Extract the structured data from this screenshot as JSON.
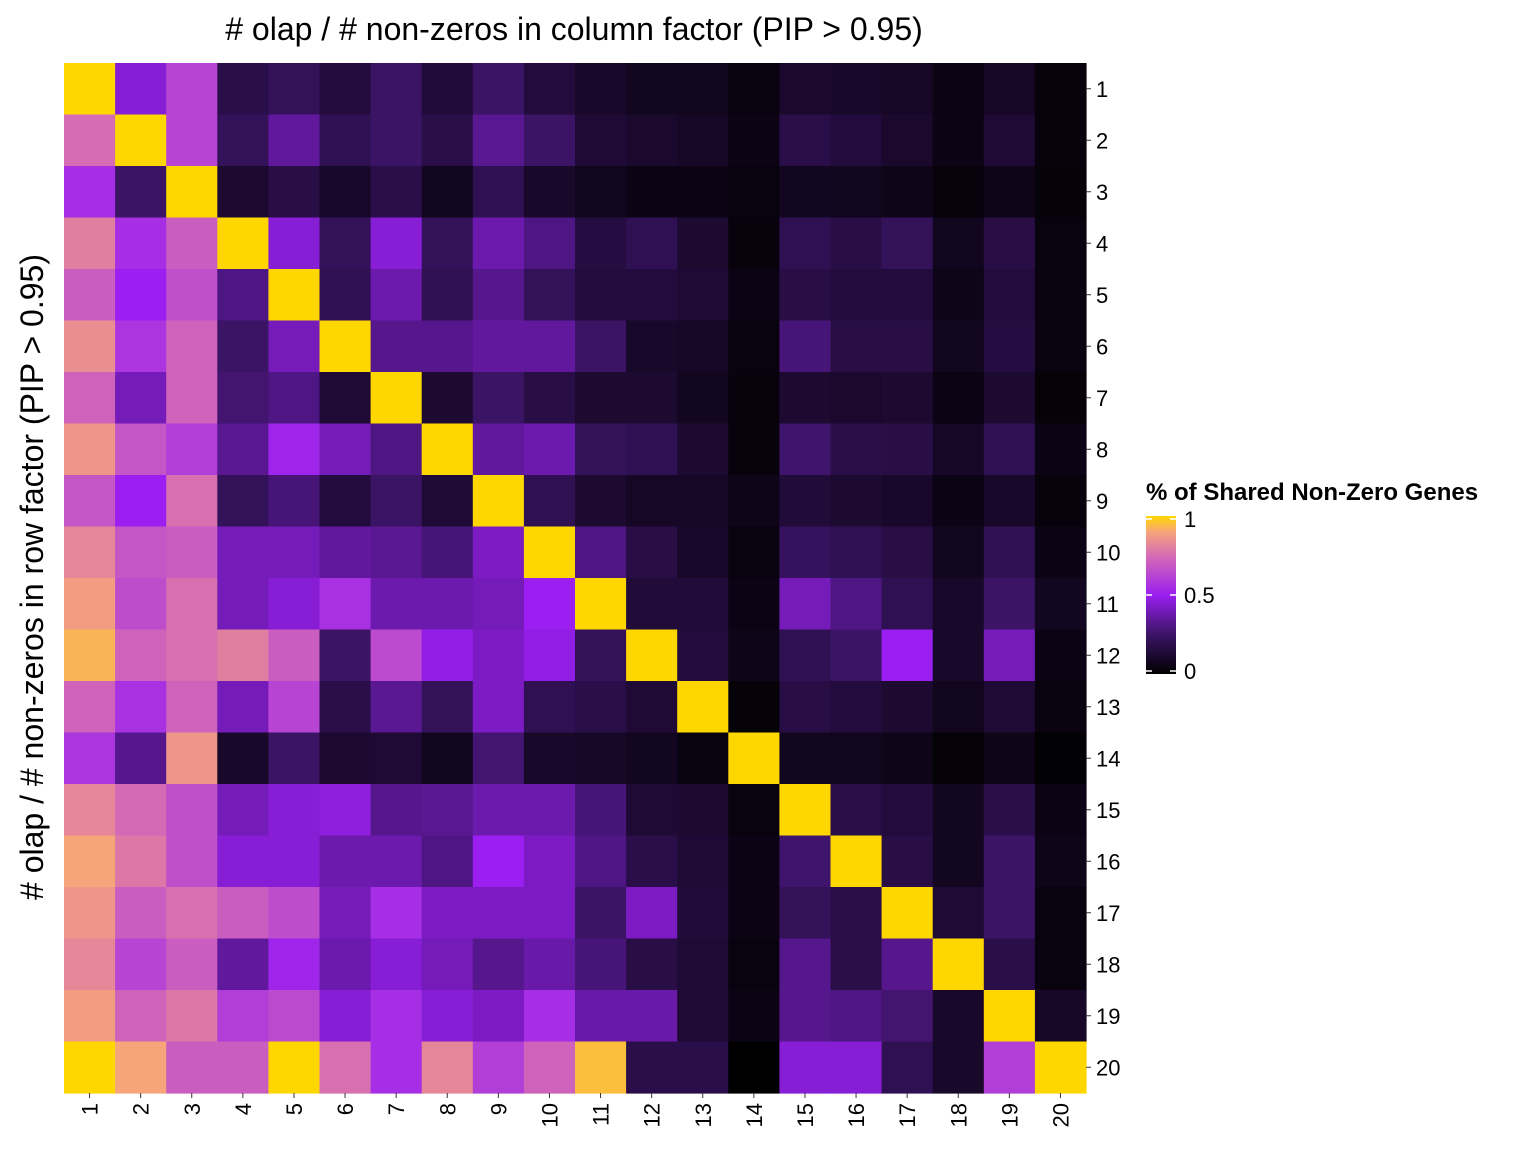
{
  "chart_data": {
    "type": "heatmap",
    "title": "# olap / # non-zeros in column factor (PIP > 0.95)",
    "ylabel": "# olap / # non-zeros in row factor (PIP > 0.95)",
    "xlabel": "",
    "x_categories": [
      "1",
      "2",
      "3",
      "4",
      "5",
      "6",
      "7",
      "8",
      "9",
      "10",
      "11",
      "12",
      "13",
      "14",
      "15",
      "16",
      "17",
      "18",
      "19",
      "20"
    ],
    "y_categories": [
      "1",
      "2",
      "3",
      "4",
      "5",
      "6",
      "7",
      "8",
      "9",
      "10",
      "11",
      "12",
      "13",
      "14",
      "15",
      "16",
      "17",
      "18",
      "19",
      "20"
    ],
    "x_axis_position": "bottom",
    "y_axis_position": "right",
    "legend": {
      "title": "% of Shared Non-Zero Genes",
      "position": "right",
      "ticks": [
        0,
        0.5,
        1
      ],
      "tick_labels": [
        "0",
        "0.5",
        "1"
      ],
      "range": [
        0,
        1
      ]
    },
    "colorscale": [
      {
        "value": 0.0,
        "color": "#000000"
      },
      {
        "value": 0.25,
        "color": "#3b1466"
      },
      {
        "value": 0.5,
        "color": "#9a1ff0"
      },
      {
        "value": 0.75,
        "color": "#d66cb4"
      },
      {
        "value": 0.9,
        "color": "#f6a57a"
      },
      {
        "value": 1.0,
        "color": "#ffd700"
      }
    ],
    "values": [
      [
        1.0,
        0.45,
        0.62,
        0.18,
        0.22,
        0.15,
        0.25,
        0.14,
        0.25,
        0.15,
        0.1,
        0.08,
        0.07,
        0.04,
        0.11,
        0.1,
        0.09,
        0.05,
        0.09,
        0.03
      ],
      [
        0.75,
        1.0,
        0.62,
        0.22,
        0.35,
        0.2,
        0.25,
        0.18,
        0.33,
        0.25,
        0.13,
        0.11,
        0.09,
        0.05,
        0.18,
        0.15,
        0.11,
        0.05,
        0.13,
        0.03
      ],
      [
        0.55,
        0.25,
        1.0,
        0.12,
        0.17,
        0.1,
        0.18,
        0.08,
        0.2,
        0.1,
        0.07,
        0.05,
        0.05,
        0.04,
        0.08,
        0.07,
        0.06,
        0.03,
        0.06,
        0.02
      ],
      [
        0.8,
        0.55,
        0.7,
        1.0,
        0.45,
        0.22,
        0.45,
        0.22,
        0.38,
        0.3,
        0.16,
        0.2,
        0.12,
        0.03,
        0.2,
        0.17,
        0.22,
        0.07,
        0.17,
        0.04
      ],
      [
        0.7,
        0.5,
        0.66,
        0.3,
        1.0,
        0.2,
        0.38,
        0.2,
        0.32,
        0.22,
        0.15,
        0.15,
        0.13,
        0.05,
        0.17,
        0.15,
        0.15,
        0.06,
        0.15,
        0.04
      ],
      [
        0.84,
        0.57,
        0.72,
        0.25,
        0.4,
        1.0,
        0.32,
        0.32,
        0.35,
        0.35,
        0.25,
        0.1,
        0.09,
        0.04,
        0.28,
        0.17,
        0.17,
        0.07,
        0.16,
        0.04
      ],
      [
        0.72,
        0.4,
        0.72,
        0.27,
        0.3,
        0.13,
        1.0,
        0.12,
        0.25,
        0.17,
        0.12,
        0.12,
        0.08,
        0.03,
        0.12,
        0.11,
        0.12,
        0.05,
        0.12,
        0.02
      ],
      [
        0.86,
        0.68,
        0.6,
        0.33,
        0.52,
        0.4,
        0.3,
        1.0,
        0.35,
        0.38,
        0.22,
        0.2,
        0.12,
        0.03,
        0.26,
        0.18,
        0.17,
        0.09,
        0.2,
        0.05
      ],
      [
        0.68,
        0.5,
        0.76,
        0.22,
        0.28,
        0.15,
        0.25,
        0.13,
        1.0,
        0.2,
        0.12,
        0.09,
        0.09,
        0.06,
        0.14,
        0.12,
        0.1,
        0.05,
        0.1,
        0.03
      ],
      [
        0.82,
        0.68,
        0.7,
        0.4,
        0.4,
        0.35,
        0.33,
        0.28,
        0.42,
        1.0,
        0.3,
        0.17,
        0.1,
        0.04,
        0.23,
        0.2,
        0.17,
        0.07,
        0.2,
        0.05
      ],
      [
        0.88,
        0.65,
        0.76,
        0.4,
        0.45,
        0.56,
        0.38,
        0.38,
        0.4,
        0.5,
        1.0,
        0.14,
        0.14,
        0.05,
        0.4,
        0.3,
        0.2,
        0.1,
        0.25,
        0.08
      ],
      [
        0.93,
        0.72,
        0.76,
        0.8,
        0.7,
        0.25,
        0.64,
        0.48,
        0.42,
        0.48,
        0.22,
        1.0,
        0.15,
        0.06,
        0.2,
        0.25,
        0.5,
        0.1,
        0.4,
        0.05
      ],
      [
        0.72,
        0.56,
        0.72,
        0.4,
        0.62,
        0.18,
        0.33,
        0.22,
        0.42,
        0.2,
        0.18,
        0.13,
        1.0,
        0.02,
        0.17,
        0.15,
        0.12,
        0.07,
        0.13,
        0.04
      ],
      [
        0.57,
        0.32,
        0.86,
        0.1,
        0.25,
        0.12,
        0.13,
        0.07,
        0.27,
        0.1,
        0.09,
        0.08,
        0.04,
        1.0,
        0.07,
        0.07,
        0.06,
        0.02,
        0.06,
        0.01
      ],
      [
        0.82,
        0.74,
        0.66,
        0.4,
        0.45,
        0.47,
        0.32,
        0.33,
        0.38,
        0.38,
        0.28,
        0.13,
        0.12,
        0.04,
        1.0,
        0.18,
        0.15,
        0.08,
        0.18,
        0.05
      ],
      [
        0.9,
        0.78,
        0.66,
        0.45,
        0.45,
        0.38,
        0.38,
        0.3,
        0.5,
        0.42,
        0.3,
        0.18,
        0.13,
        0.05,
        0.26,
        1.0,
        0.17,
        0.08,
        0.25,
        0.06
      ],
      [
        0.86,
        0.7,
        0.76,
        0.7,
        0.65,
        0.4,
        0.55,
        0.42,
        0.42,
        0.42,
        0.25,
        0.42,
        0.14,
        0.05,
        0.22,
        0.18,
        1.0,
        0.13,
        0.25,
        0.04
      ],
      [
        0.82,
        0.62,
        0.7,
        0.35,
        0.52,
        0.38,
        0.45,
        0.4,
        0.32,
        0.37,
        0.28,
        0.17,
        0.13,
        0.04,
        0.32,
        0.18,
        0.32,
        1.0,
        0.18,
        0.04
      ],
      [
        0.88,
        0.72,
        0.78,
        0.6,
        0.64,
        0.45,
        0.55,
        0.45,
        0.42,
        0.55,
        0.37,
        0.37,
        0.13,
        0.05,
        0.32,
        0.3,
        0.27,
        0.1,
        1.0,
        0.09
      ],
      [
        1.0,
        0.9,
        0.7,
        0.7,
        1.0,
        0.76,
        0.55,
        0.82,
        0.6,
        0.72,
        0.95,
        0.18,
        0.18,
        0.0,
        0.45,
        0.45,
        0.2,
        0.1,
        0.6,
        1.0
      ]
    ]
  }
}
